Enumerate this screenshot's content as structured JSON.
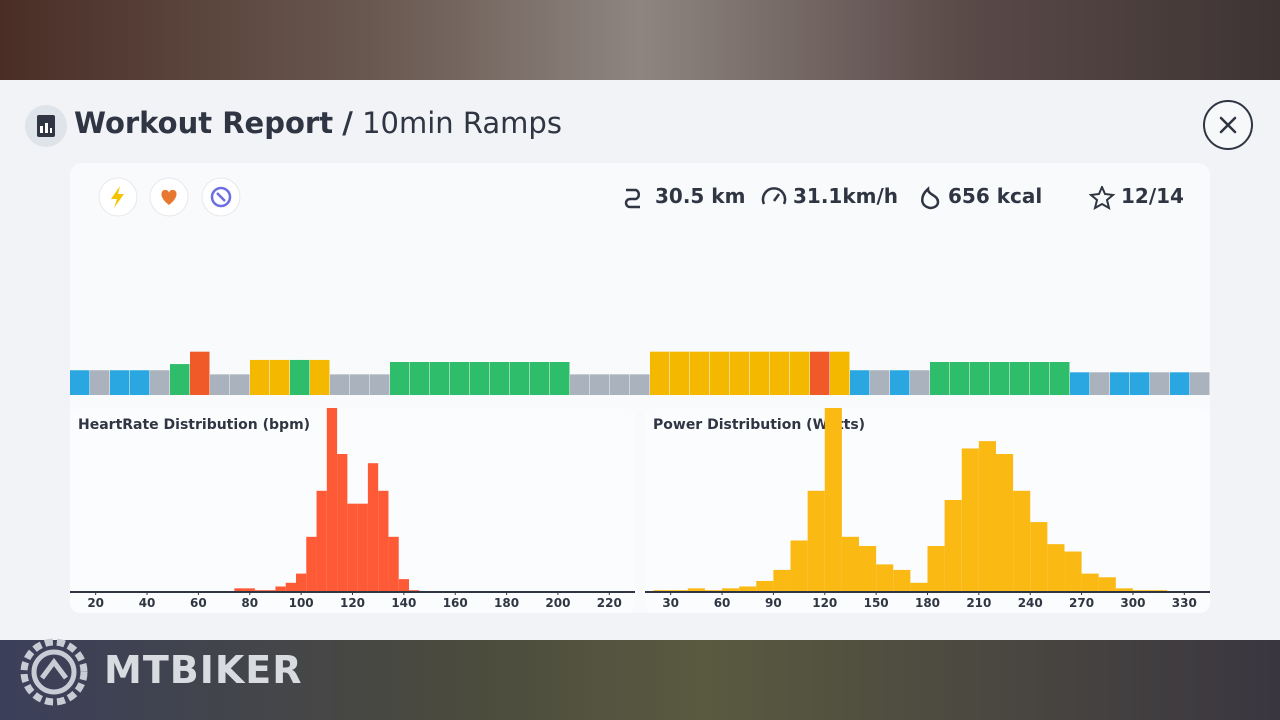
{
  "header": {
    "title": "Workout Report",
    "separator": "/",
    "subtitle": "10min Ramps"
  },
  "stats": {
    "distance": "30.5 km",
    "speed": "31.1km/h",
    "energy": "656 kcal",
    "rating": "12/14"
  },
  "watermark": "MTBIKER",
  "chart_data": [
    {
      "type": "bar",
      "values": [
        60,
        60,
        60,
        60,
        60,
        75,
        105,
        50,
        50,
        85,
        85,
        85,
        85,
        50,
        50,
        50,
        80,
        80,
        80,
        80,
        80,
        80,
        80,
        80,
        80,
        50,
        50,
        50,
        50,
        105,
        105,
        105,
        105,
        105,
        105,
        105,
        105,
        105,
        105,
        60,
        60,
        60,
        60,
        80,
        80,
        80,
        80,
        80,
        80,
        80,
        55,
        55,
        55,
        55,
        55,
        55,
        55
      ],
      "colors": [
        "#2aa6e0",
        "#aab2bd",
        "#2aa6e0",
        "#2aa6e0",
        "#aab2bd",
        "#2ebd6b",
        "#f05a28",
        "#aab2bd",
        "#aab2bd",
        "#f5b800",
        "#f5b800",
        "#2ebd6b",
        "#f5b800",
        "#aab2bd",
        "#aab2bd",
        "#aab2bd",
        "#2ebd6b",
        "#2ebd6b",
        "#2ebd6b",
        "#2ebd6b",
        "#2ebd6b",
        "#2ebd6b",
        "#2ebd6b",
        "#2ebd6b",
        "#2ebd6b",
        "#aab2bd",
        "#aab2bd",
        "#aab2bd",
        "#aab2bd",
        "#f5b800",
        "#f5b800",
        "#f5b800",
        "#f5b800",
        "#f5b800",
        "#f5b800",
        "#f5b800",
        "#f5b800",
        "#f05a28",
        "#f5b800",
        "#2aa6e0",
        "#aab2bd",
        "#2aa6e0",
        "#aab2bd",
        "#2ebd6b",
        "#2ebd6b",
        "#2ebd6b",
        "#2ebd6b",
        "#2ebd6b",
        "#2ebd6b",
        "#2ebd6b",
        "#2aa6e0",
        "#aab2bd",
        "#2aa6e0",
        "#2aa6e0",
        "#aab2bd",
        "#2aa6e0",
        "#aab2bd"
      ],
      "ylim": [
        0,
        400
      ]
    },
    {
      "type": "histogram",
      "title": "HeartRate Distribution (bpm)",
      "bins": [
        74,
        78,
        82,
        86,
        90,
        94,
        98,
        102,
        106,
        110,
        114,
        118,
        122,
        126,
        130,
        134,
        138,
        142,
        146
      ],
      "values": [
        2,
        2,
        1,
        1,
        3,
        5,
        10,
        30,
        55,
        100,
        75,
        48,
        48,
        70,
        55,
        30,
        7,
        1
      ],
      "color": "#ff5a36",
      "xlim": [
        10,
        230
      ],
      "ylim": [
        0,
        100
      ],
      "xticks": [
        20,
        40,
        60,
        80,
        100,
        120,
        140,
        160,
        180,
        200,
        220
      ]
    },
    {
      "type": "histogram",
      "title": "Power Distribution (Watts)",
      "bins": [
        20,
        30,
        40,
        50,
        60,
        70,
        80,
        90,
        100,
        110,
        120,
        130,
        140,
        150,
        160,
        170,
        180,
        190,
        200,
        210,
        220,
        230,
        240,
        250,
        260,
        270,
        280,
        290,
        300,
        310,
        320
      ],
      "values": [
        1,
        1,
        2,
        1,
        2,
        3,
        6,
        12,
        28,
        55,
        100,
        30,
        25,
        15,
        12,
        5,
        25,
        50,
        78,
        82,
        75,
        55,
        38,
        26,
        22,
        10,
        8,
        2,
        1,
        1
      ],
      "color": "#fbb914",
      "xlim": [
        15,
        345
      ],
      "ylim": [
        0,
        100
      ],
      "xticks": [
        30,
        60,
        90,
        120,
        150,
        180,
        210,
        240,
        270,
        300,
        330
      ]
    }
  ]
}
